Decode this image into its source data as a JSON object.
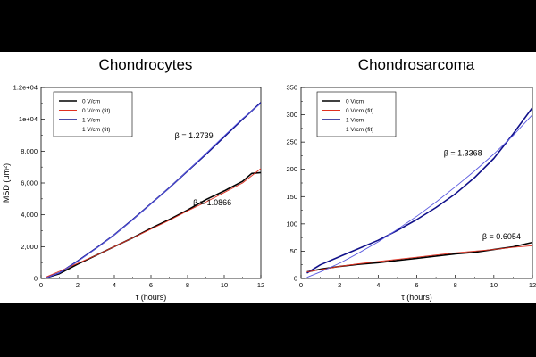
{
  "chart_data": [
    {
      "type": "line",
      "title": "Chondrocytes",
      "xlabel": "τ (hours)",
      "ylabel": "MSD (μm²)",
      "xlim": [
        0,
        12
      ],
      "ylim": [
        0,
        12000
      ],
      "xticks": [
        0,
        2,
        4,
        6,
        8,
        10,
        12
      ],
      "xtick_labels": [
        "0",
        "2",
        "4",
        "6",
        "8",
        "10",
        "12"
      ],
      "yticks": [
        0,
        2000,
        4000,
        6000,
        8000,
        10000,
        12000
      ],
      "ytick_labels": [
        "0",
        "2,000",
        "4,000",
        "6,000",
        "8,000",
        "1e+04",
        "1.2e+04"
      ],
      "legend_position": "top-left",
      "series": [
        {
          "name": "0 V/cm",
          "color": "#000000",
          "x": [
            0.3,
            1,
            2,
            3,
            4,
            5,
            6,
            7,
            8,
            9,
            10,
            11,
            11.5,
            12
          ],
          "y": [
            50,
            300,
            900,
            1450,
            2000,
            2550,
            3150,
            3700,
            4300,
            4950,
            5500,
            6100,
            6600,
            6650
          ]
        },
        {
          "name": "0 V/cm (fit)",
          "color": "#e03020",
          "x": [
            0.3,
            1,
            2,
            3,
            4,
            5,
            6,
            7,
            8,
            9,
            10,
            11,
            12
          ],
          "y": [
            100,
            450,
            950,
            1450,
            2000,
            2550,
            3100,
            3650,
            4250,
            4800,
            5400,
            6000,
            6900
          ]
        },
        {
          "name": "1 V/cm",
          "color": "#10108a",
          "x": [
            0.3,
            1,
            2,
            3,
            4,
            5,
            6,
            7,
            8,
            9,
            10,
            11,
            12
          ],
          "y": [
            50,
            350,
            1100,
            1900,
            2750,
            3700,
            4700,
            5700,
            6750,
            7800,
            8900,
            10000,
            11050
          ]
        },
        {
          "name": "1 V/cm (fit)",
          "color": "#5a5ae0",
          "x": [
            0.3,
            1,
            2,
            3,
            4,
            5,
            6,
            7,
            8,
            9,
            10,
            11,
            12
          ],
          "y": [
            50,
            350,
            1080,
            1880,
            2740,
            3680,
            4680,
            5700,
            6760,
            7850,
            8960,
            10050,
            11000
          ]
        }
      ],
      "annotations": [
        {
          "text": "β  = 1.2739",
          "x": 7.3,
          "y": 8800
        },
        {
          "text": "β  = 1.0866",
          "x": 8.3,
          "y": 4600
        }
      ]
    },
    {
      "type": "line",
      "title": "Chondrosarcoma",
      "xlabel": "τ (hours)",
      "ylabel": "",
      "xlim": [
        0,
        12
      ],
      "ylim": [
        0,
        350
      ],
      "xticks": [
        0,
        2,
        4,
        6,
        8,
        10,
        12
      ],
      "xtick_labels": [
        "0",
        "2",
        "4",
        "6",
        "8",
        "10",
        "12"
      ],
      "yticks": [
        0,
        50,
        100,
        150,
        200,
        250,
        300,
        350
      ],
      "ytick_labels": [
        "0",
        "50",
        "100",
        "150",
        "200",
        "250",
        "300",
        "350"
      ],
      "legend_position": "top-left",
      "series": [
        {
          "name": "0 V/cm",
          "color": "#000000",
          "x": [
            0.3,
            1,
            2,
            3,
            4,
            5,
            6,
            7,
            8,
            9,
            10,
            11,
            12
          ],
          "y": [
            12,
            17,
            22,
            26,
            29,
            33,
            37,
            41,
            45,
            48,
            53,
            58,
            66
          ]
        },
        {
          "name": "0 V/cm (fit)",
          "color": "#e03020",
          "x": [
            0.3,
            1,
            2,
            3,
            4,
            5,
            6,
            7,
            8,
            9,
            10,
            11,
            12
          ],
          "y": [
            12,
            16,
            22,
            27,
            31,
            35,
            39,
            43,
            47,
            50,
            53,
            57,
            60
          ]
        },
        {
          "name": "1 V/cm",
          "color": "#10108a",
          "x": [
            0.3,
            1,
            2,
            3,
            4,
            5,
            6,
            7,
            8,
            9,
            10,
            11,
            12
          ],
          "y": [
            10,
            25,
            40,
            55,
            70,
            88,
            108,
            130,
            155,
            185,
            220,
            265,
            313
          ]
        },
        {
          "name": "1 V/cm (fit)",
          "color": "#5a5ae0",
          "x": [
            0.3,
            1,
            2,
            3,
            4,
            5,
            6,
            7,
            8,
            9,
            10,
            11,
            12
          ],
          "y": [
            2,
            12,
            28,
            47,
            67,
            90,
            114,
            140,
            168,
            197,
            228,
            262,
            300
          ]
        }
      ],
      "annotations": [
        {
          "text": "β  = 1.3368",
          "x": 7.4,
          "y": 225
        },
        {
          "text": "β  = 0.6054",
          "x": 9.4,
          "y": 72
        }
      ]
    }
  ]
}
